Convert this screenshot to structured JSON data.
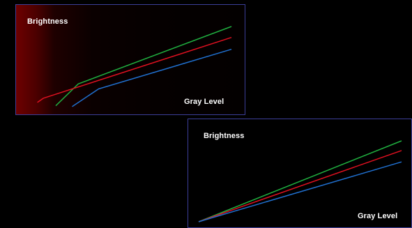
{
  "colors": {
    "green": "#20b040",
    "red": "#e01020",
    "blue": "#2070d0",
    "border": "#3c3f9a",
    "panel1_glow": "#6e0000"
  },
  "chart_data": [
    {
      "type": "line",
      "title": "",
      "xlabel": "Gray Level",
      "ylabel": "Brightness",
      "xlim": [
        0,
        100
      ],
      "ylim": [
        0,
        100
      ],
      "grid": false,
      "legend": "none",
      "series": [
        {
          "color": "green",
          "x": [
            14,
            25,
            100
          ],
          "y": [
            6,
            32,
            100
          ]
        },
        {
          "color": "red",
          "x": [
            5,
            8,
            100
          ],
          "y": [
            10,
            15,
            87
          ]
        },
        {
          "color": "blue",
          "x": [
            22,
            35,
            100
          ],
          "y": [
            5,
            26,
            73
          ]
        }
      ]
    },
    {
      "type": "line",
      "title": "",
      "xlabel": "Gray Level",
      "ylabel": "Brightness",
      "xlim": [
        0,
        100
      ],
      "ylim": [
        0,
        100
      ],
      "grid": false,
      "legend": "none",
      "series": [
        {
          "color": "green",
          "x": [
            0,
            100
          ],
          "y": [
            0,
            100
          ]
        },
        {
          "color": "red",
          "x": [
            0,
            100
          ],
          "y": [
            0,
            88
          ]
        },
        {
          "color": "blue",
          "x": [
            0,
            100
          ],
          "y": [
            0,
            74
          ]
        }
      ]
    }
  ]
}
